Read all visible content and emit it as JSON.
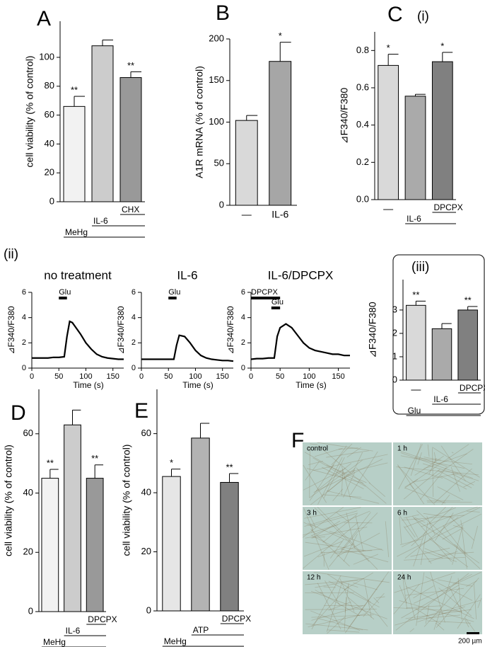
{
  "chart_data": [
    {
      "type": "bar",
      "panel": "A",
      "ylabel": "cell viability (% of control)",
      "values": [
        66,
        108,
        86
      ],
      "errors": [
        7,
        4,
        4
      ],
      "colors": [
        "#f2f2f2",
        "#cccccc",
        "#999999"
      ],
      "annotations": [
        "**",
        null,
        "**"
      ],
      "ylim": [
        0,
        125
      ],
      "yticks": [
        0,
        20,
        40,
        60,
        80,
        100
      ],
      "treatments": [
        {
          "label": "CHX",
          "span": [
            2,
            2
          ]
        },
        {
          "label": "IL-6",
          "span": [
            1,
            2
          ]
        },
        {
          "label": "MeHg",
          "span": [
            0,
            2
          ]
        }
      ]
    },
    {
      "type": "bar",
      "panel": "B",
      "ylabel": "A1R mRNA (% of control)",
      "categories": [
        "—",
        "IL-6"
      ],
      "values": [
        102,
        173
      ],
      "errors": [
        6,
        23
      ],
      "colors": [
        "#d9d9d9",
        "#a6a6a6"
      ],
      "annotations": [
        null,
        "*"
      ],
      "ylim": [
        0,
        200
      ],
      "yticks": [
        0,
        50,
        100,
        150,
        200
      ]
    },
    {
      "type": "bar",
      "panel": "C",
      "subpanel": "(i)",
      "ylabel": "⊿F340/F380",
      "categories": [
        "—",
        null,
        null
      ],
      "values": [
        0.72,
        0.555,
        0.74
      ],
      "errors": [
        0.06,
        0.01,
        0.05
      ],
      "colors": [
        "#d9d9d9",
        "#aaaaaa",
        "#808080"
      ],
      "annotations": [
        "*",
        null,
        "*"
      ],
      "ylim": [
        0,
        0.9
      ],
      "yticks": [
        {
          "value": 0,
          "label": "0.0"
        },
        0.2,
        0.4,
        0.6,
        0.8
      ],
      "treatments": [
        {
          "label": "DPCPX",
          "span": [
            2,
            2
          ]
        },
        {
          "label": "IL-6",
          "span": [
            1,
            2
          ]
        }
      ]
    },
    {
      "type": "line",
      "subpanel": "(ii)",
      "title": "no treatment",
      "ylabel": "⊿F340/F380",
      "xlabel": "Time (s)",
      "color": "#000000",
      "x": [
        0,
        10,
        20,
        30,
        40,
        50,
        60,
        65,
        70,
        75,
        80,
        90,
        100,
        110,
        120,
        130,
        140,
        150,
        160,
        170
      ],
      "values": [
        0.8,
        0.8,
        0.8,
        0.8,
        0.85,
        0.85,
        0.9,
        2.5,
        3.7,
        3.6,
        3.3,
        2.7,
        2.0,
        1.5,
        1.1,
        0.9,
        0.8,
        0.75,
        0.7,
        0.7
      ],
      "xlim": [
        0,
        170
      ],
      "xticks": [
        0,
        50,
        100,
        150
      ],
      "ylim": [
        0,
        6
      ],
      "yticks": [
        0,
        2,
        4,
        6
      ],
      "markers": [
        {
          "label": "Glu",
          "range": [
            50,
            65
          ]
        }
      ]
    },
    {
      "type": "line",
      "title": "IL-6",
      "ylabel": "⊿F340/F380",
      "xlabel": "Time (s)",
      "color": "#000000",
      "x": [
        0,
        10,
        20,
        30,
        40,
        50,
        60,
        65,
        70,
        80,
        90,
        100,
        110,
        120,
        130,
        140,
        150,
        160,
        170
      ],
      "values": [
        0.7,
        0.7,
        0.7,
        0.7,
        0.7,
        0.7,
        0.7,
        1.8,
        2.6,
        2.5,
        2.0,
        1.4,
        1.0,
        0.8,
        0.7,
        0.65,
        0.6,
        0.6,
        0.55
      ],
      "xlim": [
        0,
        170
      ],
      "xticks": [
        0,
        50,
        100,
        150
      ],
      "ylim": [
        0,
        6
      ],
      "yticks": [
        0,
        2,
        4,
        6
      ],
      "markers": [
        {
          "label": "Glu",
          "range": [
            50,
            65
          ]
        }
      ]
    },
    {
      "type": "line",
      "title": "IL-6/DPCPX",
      "ylabel": "⊿F340/F380",
      "xlabel": "Time (s)",
      "color": "#000000",
      "x": [
        0,
        10,
        20,
        30,
        40,
        45,
        50,
        60,
        70,
        80,
        90,
        100,
        110,
        120,
        130,
        140,
        150,
        160,
        170
      ],
      "values": [
        0.7,
        0.75,
        0.75,
        0.8,
        0.8,
        2.5,
        3.2,
        3.5,
        3.2,
        2.6,
        2.0,
        1.6,
        1.4,
        1.3,
        1.2,
        1.1,
        1.1,
        1.0,
        1.0
      ],
      "xlim": [
        0,
        170
      ],
      "xticks": [
        0,
        50,
        100,
        150
      ],
      "ylim": [
        0,
        6
      ],
      "yticks": [
        0,
        2,
        4,
        6
      ],
      "markers": [
        {
          "label": "DPCPX",
          "range": [
            0,
            50
          ]
        },
        {
          "label": "Glu",
          "range": [
            35,
            50
          ]
        }
      ]
    },
    {
      "type": "bar",
      "subpanel": "(iii)",
      "ylabel": "⊿F340/F380",
      "categories": [
        "—",
        null,
        null
      ],
      "values": [
        3.2,
        2.2,
        3.0
      ],
      "errors": [
        0.18,
        0.22,
        0.15
      ],
      "colors": [
        "#d9d9d9",
        "#aaaaaa",
        "#808080"
      ],
      "annotations": [
        "**",
        null,
        "**"
      ],
      "ylim": [
        0,
        4.3
      ],
      "yticks": [
        0,
        1,
        2,
        3
      ],
      "treatments": [
        {
          "label": "DPCPX",
          "span": [
            2,
            2
          ]
        },
        {
          "label": "IL-6",
          "span": [
            1,
            2
          ]
        },
        {
          "label": "Glu",
          "span": [
            0,
            2
          ]
        }
      ]
    },
    {
      "type": "bar",
      "panel": "D",
      "ylabel": "cell viability (% of control)",
      "values": [
        45,
        63,
        45
      ],
      "errors": [
        3,
        5,
        4.5
      ],
      "colors": [
        "#f2f2f2",
        "#cccccc",
        "#999999"
      ],
      "annotations": [
        "**",
        null,
        "**"
      ],
      "ylim": [
        0,
        75
      ],
      "yticks": [
        0,
        20,
        40,
        60
      ],
      "treatments": [
        {
          "label": "DPCPX",
          "span": [
            2,
            2
          ]
        },
        {
          "label": "IL-6",
          "span": [
            1,
            2
          ]
        },
        {
          "label": "MeHg",
          "span": [
            0,
            2
          ]
        }
      ]
    },
    {
      "type": "bar",
      "panel": "E",
      "ylabel": "cell viability (% of control)",
      "values": [
        45.5,
        58.5,
        43.5
      ],
      "errors": [
        2.5,
        5,
        3
      ],
      "colors": [
        "#e6e6e6",
        "#b3b3b3",
        "#808080"
      ],
      "annotations": [
        "*",
        null,
        "**"
      ],
      "ylim": [
        0,
        75
      ],
      "yticks": [
        0,
        20,
        40,
        60
      ],
      "treatments": [
        {
          "label": "DPCPX",
          "span": [
            2,
            2
          ]
        },
        {
          "label": "ATP",
          "span": [
            1,
            2
          ]
        },
        {
          "label": "MeHg",
          "span": [
            0,
            2
          ]
        }
      ]
    }
  ],
  "panel_f": {
    "panel": "F",
    "images": [
      "control",
      "1 h",
      "3 h",
      "6 h",
      "12 h",
      "24 h"
    ],
    "scale_bar": "200 µm"
  }
}
